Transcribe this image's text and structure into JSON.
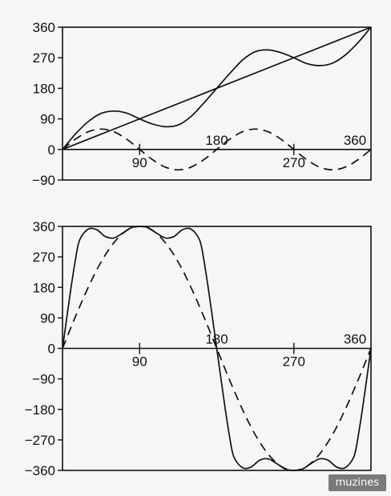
{
  "chart_data": [
    {
      "type": "line",
      "ylim": [
        -90,
        360
      ],
      "xlim": [
        0,
        360
      ],
      "y_ticks": [
        "360",
        "270",
        "180",
        "90",
        "0",
        "−90"
      ],
      "x_tick_labels": [
        {
          "x": 90,
          "label": "90",
          "position": "below"
        },
        {
          "x": 180,
          "label": "180",
          "position": "above"
        },
        {
          "x": 270,
          "label": "270",
          "position": "below"
        },
        {
          "x": 360,
          "label": "360",
          "position": "above"
        }
      ],
      "series": [
        {
          "style": "solid",
          "x": [
            0,
            360
          ],
          "y": [
            0,
            360
          ]
        },
        {
          "style": "solid",
          "x": [
            0,
            15,
            30,
            45,
            60,
            75,
            90,
            105,
            120,
            135,
            150,
            165,
            180,
            195,
            210,
            225,
            240,
            255,
            270,
            285,
            300,
            315,
            330,
            345,
            360
          ],
          "y": [
            0,
            45,
            82,
            106,
            113,
            107,
            90,
            75,
            67,
            72,
            97,
            137,
            180,
            223,
            263,
            288,
            293,
            285,
            270,
            253,
            247,
            254,
            278,
            315,
            360
          ]
        },
        {
          "style": "dashed",
          "x": [
            0,
            15,
            30,
            45,
            60,
            75,
            90,
            105,
            120,
            135,
            150,
            165,
            180,
            195,
            210,
            225,
            240,
            255,
            270,
            285,
            300,
            315,
            330,
            345,
            360
          ],
          "y": [
            0,
            30,
            52,
            60,
            52,
            30,
            0,
            -30,
            -52,
            -60,
            -52,
            -30,
            0,
            30,
            52,
            60,
            52,
            30,
            0,
            -30,
            -52,
            -60,
            -52,
            -30,
            0
          ]
        }
      ]
    },
    {
      "type": "line",
      "ylim": [
        -360,
        360
      ],
      "xlim": [
        0,
        360
      ],
      "y_ticks": [
        "360",
        "270",
        "180",
        "90",
        "0",
        "−90",
        "−180",
        "−270",
        "−360"
      ],
      "x_tick_labels": [
        {
          "x": 90,
          "label": "90",
          "position": "below"
        },
        {
          "x": 180,
          "label": "180",
          "position": "above"
        },
        {
          "x": 270,
          "label": "270",
          "position": "below"
        },
        {
          "x": 360,
          "label": "360",
          "position": "above"
        }
      ],
      "series": [
        {
          "style": "solid",
          "x": [
            0,
            5,
            10,
            15,
            20,
            30,
            40,
            50,
            60,
            70,
            80,
            90,
            100,
            110,
            120,
            130,
            140,
            150,
            160,
            165,
            170,
            175,
            180,
            185,
            190,
            195,
            200,
            210,
            220,
            230,
            240,
            250,
            260,
            270,
            280,
            290,
            300,
            310,
            320,
            330,
            340,
            345,
            350,
            355,
            360
          ],
          "y": [
            0,
            90,
            180,
            260,
            320,
            352,
            350,
            330,
            326,
            340,
            356,
            360,
            356,
            340,
            326,
            330,
            350,
            352,
            320,
            260,
            180,
            90,
            0,
            -90,
            -180,
            -260,
            -320,
            -352,
            -350,
            -330,
            -326,
            -340,
            -356,
            -360,
            -356,
            -340,
            -326,
            -330,
            -350,
            -352,
            -320,
            -260,
            -180,
            -90,
            0
          ]
        },
        {
          "style": "dashed",
          "x": [
            0,
            15,
            30,
            45,
            60,
            75,
            90,
            105,
            120,
            135,
            150,
            165,
            180,
            195,
            210,
            225,
            240,
            255,
            270,
            285,
            300,
            315,
            330,
            345,
            360
          ],
          "y": [
            0,
            93,
            180,
            255,
            312,
            348,
            360,
            348,
            312,
            255,
            180,
            93,
            0,
            -93,
            -180,
            -255,
            -312,
            -348,
            -360,
            -348,
            -312,
            -255,
            -180,
            -93,
            0
          ]
        }
      ]
    }
  ],
  "watermark": "muzines"
}
